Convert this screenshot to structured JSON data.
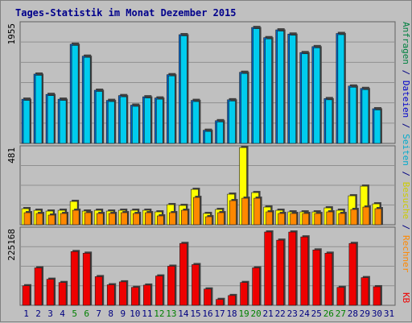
{
  "title": "Tages-Statistik im Monat Dezember 2015",
  "colors": {
    "background": "#c0c0c0",
    "panel_bg": "#c0c0c0",
    "grid": "#909090",
    "border": "#606060",
    "anfragen": "#00ccee",
    "dateien": "#0066cc",
    "seiten": "#1188cc",
    "besuche": "#ffff00",
    "rechner": "#ff8800",
    "kb": "#ee0000",
    "day_weekday": "#000080",
    "day_weekend": "#008000"
  },
  "right_labels": {
    "top": [
      {
        "text": "Anfragen",
        "color": "#008040"
      },
      {
        "text": " / ",
        "color": "#000080"
      },
      {
        "text": "Dateien",
        "color": "#0000cc"
      },
      {
        "text": " / ",
        "color": "#000080"
      },
      {
        "text": "Seiten",
        "color": "#00aacc"
      },
      {
        "text": " / ",
        "color": "#000080"
      },
      {
        "text": "Besuche",
        "color": "#cccc00"
      },
      {
        "text": " / ",
        "color": "#000080"
      },
      {
        "text": "Rechner",
        "color": "#ff8800"
      }
    ],
    "bottom": "KB"
  },
  "chart_data": [
    {
      "type": "bar",
      "name": "top",
      "ymax_label": "1955",
      "ylim": [
        0,
        1955
      ],
      "categories": [
        "1",
        "2",
        "3",
        "4",
        "5",
        "6",
        "7",
        "8",
        "9",
        "10",
        "11",
        "12",
        "13",
        "14",
        "15",
        "16",
        "17",
        "18",
        "19",
        "20",
        "21",
        "22",
        "23",
        "24",
        "25",
        "26",
        "27",
        "28",
        "29",
        "30",
        "31"
      ],
      "series": [
        {
          "name": "Anfragen",
          "values": [
            720,
            1140,
            800,
            720,
            1640,
            1440,
            870,
            700,
            780,
            620,
            760,
            740,
            1130,
            1800,
            700,
            200,
            360,
            710,
            1170,
            1920,
            1750,
            1880,
            1810,
            1500,
            1600,
            730,
            1820,
            940,
            900,
            560,
            0
          ]
        },
        {
          "name": "Dateien",
          "values": [
            740,
            1160,
            820,
            740,
            1660,
            1460,
            890,
            720,
            800,
            640,
            780,
            760,
            1150,
            1820,
            720,
            220,
            380,
            730,
            1190,
            1940,
            1770,
            1900,
            1830,
            1520,
            1620,
            750,
            1840,
            960,
            920,
            580,
            0
          ]
        }
      ]
    },
    {
      "type": "bar",
      "name": "middle",
      "ymax_label": "481",
      "ylim": [
        0,
        481
      ],
      "series": [
        {
          "name": "Besuche",
          "values": [
            100,
            90,
            85,
            90,
            145,
            85,
            90,
            85,
            90,
            90,
            90,
            80,
            125,
            120,
            220,
            70,
            95,
            190,
            480,
            200,
            110,
            90,
            80,
            80,
            80,
            105,
            90,
            180,
            240,
            130,
            0
          ]
        },
        {
          "name": "Rechner",
          "values": [
            75,
            70,
            60,
            70,
            90,
            75,
            70,
            70,
            75,
            70,
            75,
            55,
            75,
            90,
            170,
            50,
            75,
            150,
            165,
            165,
            80,
            70,
            70,
            70,
            70,
            80,
            70,
            95,
            110,
            100,
            0
          ]
        }
      ]
    },
    {
      "type": "bar",
      "name": "bottom",
      "ymax_label": "225168",
      "ylim": [
        0,
        225168
      ],
      "series": [
        {
          "name": "KB",
          "values": [
            60000,
            115000,
            80000,
            70000,
            165000,
            160000,
            88000,
            63000,
            72000,
            55000,
            62000,
            90000,
            120000,
            190000,
            125000,
            50000,
            18000,
            30000,
            70000,
            115000,
            225168,
            200000,
            225000,
            210000,
            170000,
            160000,
            55000,
            190000,
            85000,
            57000,
            0
          ]
        }
      ]
    }
  ],
  "days": [
    {
      "label": "1",
      "weekend": false
    },
    {
      "label": "2",
      "weekend": false
    },
    {
      "label": "3",
      "weekend": false
    },
    {
      "label": "4",
      "weekend": false
    },
    {
      "label": "5",
      "weekend": true
    },
    {
      "label": "6",
      "weekend": true
    },
    {
      "label": "7",
      "weekend": false
    },
    {
      "label": "8",
      "weekend": false
    },
    {
      "label": "9",
      "weekend": false
    },
    {
      "label": "10",
      "weekend": false
    },
    {
      "label": "11",
      "weekend": false
    },
    {
      "label": "12",
      "weekend": true
    },
    {
      "label": "13",
      "weekend": true
    },
    {
      "label": "14",
      "weekend": false
    },
    {
      "label": "15",
      "weekend": false
    },
    {
      "label": "16",
      "weekend": false
    },
    {
      "label": "17",
      "weekend": false
    },
    {
      "label": "18",
      "weekend": false
    },
    {
      "label": "19",
      "weekend": true
    },
    {
      "label": "20",
      "weekend": true
    },
    {
      "label": "21",
      "weekend": false
    },
    {
      "label": "22",
      "weekend": false
    },
    {
      "label": "23",
      "weekend": false
    },
    {
      "label": "24",
      "weekend": false
    },
    {
      "label": "25",
      "weekend": false
    },
    {
      "label": "26",
      "weekend": true
    },
    {
      "label": "27",
      "weekend": true
    },
    {
      "label": "28",
      "weekend": false
    },
    {
      "label": "29",
      "weekend": false
    },
    {
      "label": "30",
      "weekend": false
    },
    {
      "label": "31",
      "weekend": false
    }
  ]
}
